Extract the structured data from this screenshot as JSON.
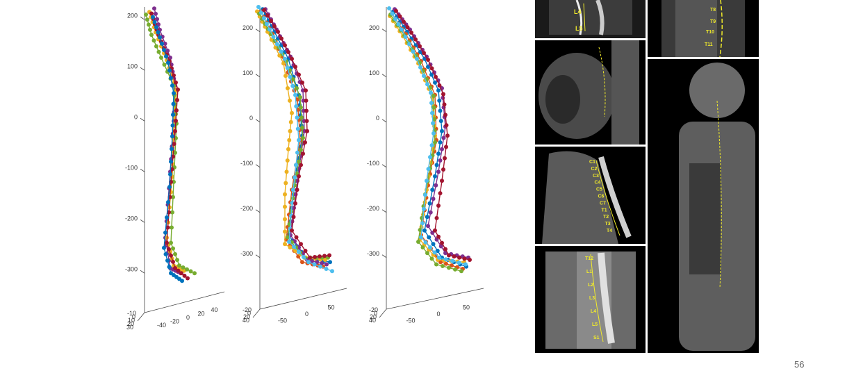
{
  "page_number": "56",
  "chart_data": [
    {
      "type": "line3d",
      "title": "",
      "z_ticks": [
        "200",
        "100",
        "0",
        "-100",
        "-200",
        "-300"
      ],
      "x_ticks": [
        "-40",
        "-20",
        "0",
        "20",
        "40"
      ],
      "y_ticks": [
        "-10",
        "0",
        "10",
        "20",
        "30"
      ],
      "series": [
        {
          "color": "#7E2F8E",
          "values": [
            [
              12,
              222
            ],
            [
              20,
              180
            ],
            [
              35,
              125
            ],
            [
              42,
              70
            ],
            [
              40,
              0
            ],
            [
              35,
              -100
            ],
            [
              28,
              -230
            ],
            [
              35,
              -290
            ],
            [
              50,
              -300
            ]
          ]
        },
        {
          "color": "#EDB120",
          "values": [
            [
              5,
              215
            ],
            [
              14,
              175
            ],
            [
              30,
              120
            ],
            [
              44,
              60
            ],
            [
              40,
              -10
            ],
            [
              38,
              -110
            ],
            [
              30,
              -230
            ],
            [
              40,
              -285
            ],
            [
              55,
              -295
            ]
          ]
        },
        {
          "color": "#77AC30",
          "values": [
            [
              0,
              210
            ],
            [
              8,
              170
            ],
            [
              22,
              125
            ],
            [
              40,
              70
            ],
            [
              44,
              -5
            ],
            [
              40,
              -120
            ],
            [
              36,
              -240
            ],
            [
              48,
              -285
            ],
            [
              70,
              -300
            ]
          ]
        },
        {
          "color": "#A2142F",
          "values": [
            [
              8,
              212
            ],
            [
              18,
              170
            ],
            [
              34,
              118
            ],
            [
              46,
              62
            ],
            [
              42,
              -20
            ],
            [
              36,
              -120
            ],
            [
              30,
              -240
            ],
            [
              42,
              -290
            ],
            [
              60,
              -310
            ]
          ]
        },
        {
          "color": "#0072BD",
          "values": [
            [
              10,
              205
            ],
            [
              20,
              165
            ],
            [
              32,
              115
            ],
            [
              40,
              55
            ],
            [
              38,
              -30
            ],
            [
              34,
              -130
            ],
            [
              26,
              -250
            ],
            [
              36,
              -300
            ],
            [
              52,
              -315
            ]
          ]
        }
      ]
    },
    {
      "type": "line3d",
      "title": "",
      "z_ticks": [
        "200",
        "100",
        "0",
        "-100",
        "-200",
        "-300"
      ],
      "x_ticks": [
        "-50",
        "0",
        "50"
      ],
      "y_ticks": [
        "-20",
        "0",
        "20",
        "40"
      ],
      "series": [
        {
          "color": "#0072BD",
          "values": [
            [
              8,
              250
            ],
            [
              25,
              200
            ],
            [
              45,
              140
            ],
            [
              60,
              60
            ],
            [
              65,
              -30
            ],
            [
              55,
              -130
            ],
            [
              45,
              -250
            ],
            [
              70,
              -300
            ],
            [
              105,
              -310
            ]
          ]
        },
        {
          "color": "#D95319",
          "values": [
            [
              5,
              245
            ],
            [
              22,
              195
            ],
            [
              40,
              130
            ],
            [
              58,
              50
            ],
            [
              62,
              -40
            ],
            [
              50,
              -150
            ],
            [
              42,
              -260
            ],
            [
              65,
              -310
            ],
            [
              95,
              -320
            ]
          ]
        },
        {
          "color": "#EDB120",
          "values": [
            [
              0,
              245
            ],
            [
              15,
              200
            ],
            [
              38,
              130
            ],
            [
              50,
              20
            ],
            [
              45,
              -60
            ],
            [
              40,
              -160
            ],
            [
              40,
              -270
            ],
            [
              70,
              -300
            ],
            [
              98,
              -305
            ]
          ]
        },
        {
          "color": "#7E2F8E",
          "values": [
            [
              12,
              250
            ],
            [
              28,
              205
            ],
            [
              48,
              145
            ],
            [
              66,
              70
            ],
            [
              68,
              -20
            ],
            [
              58,
              -130
            ],
            [
              48,
              -250
            ],
            [
              72,
              -305
            ],
            [
              100,
              -315
            ]
          ]
        },
        {
          "color": "#77AC30",
          "values": [
            [
              3,
              240
            ],
            [
              20,
              195
            ],
            [
              42,
              135
            ],
            [
              62,
              55
            ],
            [
              66,
              -35
            ],
            [
              54,
              -140
            ],
            [
              44,
              -255
            ],
            [
              68,
              -300
            ],
            [
              102,
              -300
            ]
          ]
        },
        {
          "color": "#4DBEEE",
          "values": [
            [
              2,
              255
            ],
            [
              18,
              205
            ],
            [
              40,
              140
            ],
            [
              55,
              60
            ],
            [
              60,
              -40
            ],
            [
              52,
              -150
            ],
            [
              46,
              -265
            ],
            [
              74,
              -310
            ],
            [
              108,
              -330
            ]
          ]
        },
        {
          "color": "#A2142F",
          "values": [
            [
              10,
              248
            ],
            [
              30,
              200
            ],
            [
              50,
              140
            ],
            [
              70,
              70
            ],
            [
              72,
              -20
            ],
            [
              60,
              -120
            ],
            [
              50,
              -240
            ],
            [
              76,
              -300
            ],
            [
              104,
              -295
            ]
          ]
        }
      ]
    },
    {
      "type": "line3d",
      "title": "",
      "z_ticks": [
        "200",
        "100",
        "0",
        "-100",
        "-200",
        "-300"
      ],
      "x_ticks": [
        "-50",
        "0",
        "50"
      ],
      "y_ticks": [
        "-20",
        "0",
        "20",
        "40"
      ],
      "series": [
        {
          "color": "#0072BD",
          "values": [
            [
              10,
              245
            ],
            [
              30,
              200
            ],
            [
              55,
              140
            ],
            [
              75,
              70
            ],
            [
              80,
              -20
            ],
            [
              70,
              -120
            ],
            [
              55,
              -240
            ],
            [
              80,
              -300
            ],
            [
              115,
              -320
            ]
          ]
        },
        {
          "color": "#D95319",
          "values": [
            [
              8,
              240
            ],
            [
              28,
              195
            ],
            [
              50,
              135
            ],
            [
              70,
              60
            ],
            [
              72,
              -40
            ],
            [
              60,
              -140
            ],
            [
              50,
              -250
            ],
            [
              78,
              -310
            ],
            [
              110,
              -325
            ]
          ]
        },
        {
          "color": "#EDB120",
          "values": [
            [
              5,
              235
            ],
            [
              24,
              190
            ],
            [
              46,
              130
            ],
            [
              66,
              55
            ],
            [
              70,
              -30
            ],
            [
              58,
              -150
            ],
            [
              48,
              -260
            ],
            [
              74,
              -305
            ],
            [
              112,
              -310
            ]
          ]
        },
        {
          "color": "#7E2F8E",
          "values": [
            [
              12,
              250
            ],
            [
              34,
              205
            ],
            [
              58,
              145
            ],
            [
              80,
              75
            ],
            [
              85,
              -10
            ],
            [
              75,
              -110
            ],
            [
              60,
              -230
            ],
            [
              85,
              -290
            ],
            [
              118,
              -300
            ]
          ]
        },
        {
          "color": "#77AC30",
          "values": [
            [
              6,
              238
            ],
            [
              26,
              192
            ],
            [
              48,
              132
            ],
            [
              68,
              58
            ],
            [
              70,
              -45
            ],
            [
              56,
              -160
            ],
            [
              46,
              -265
            ],
            [
              72,
              -315
            ],
            [
              108,
              -330
            ]
          ]
        },
        {
          "color": "#4DBEEE",
          "values": [
            [
              4,
              252
            ],
            [
              22,
              205
            ],
            [
              44,
              140
            ],
            [
              64,
              65
            ],
            [
              68,
              -25
            ],
            [
              58,
              -130
            ],
            [
              50,
              -255
            ],
            [
              76,
              -300
            ],
            [
              114,
              -315
            ]
          ]
        },
        {
          "color": "#A2142F",
          "values": [
            [
              14,
              246
            ],
            [
              36,
              198
            ],
            [
              60,
              138
            ],
            [
              82,
              62
            ],
            [
              88,
              -30
            ],
            [
              80,
              -130
            ],
            [
              70,
              -240
            ],
            [
              90,
              -295
            ],
            [
              120,
              -305
            ]
          ]
        }
      ]
    }
  ],
  "ct_images": {
    "top_left": {
      "labels": [
        "L4",
        "L5"
      ]
    },
    "top_right": {
      "labels": [
        "T8",
        "T9",
        "T10",
        "T11"
      ]
    },
    "cervical": {
      "labels": [
        "C1",
        "C2",
        "C3",
        "C4",
        "C5",
        "C6",
        "C7",
        "T1",
        "T2",
        "T3",
        "T4"
      ]
    },
    "lumbar": {
      "labels": [
        "T12",
        "L1",
        "L2",
        "L3",
        "L4",
        "L5",
        "S1"
      ]
    }
  }
}
